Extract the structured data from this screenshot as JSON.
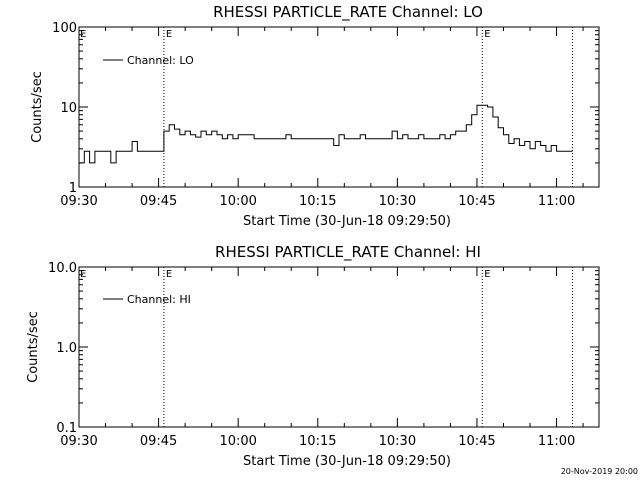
{
  "chart_data": [
    {
      "type": "line",
      "title": "RHESSI PARTICLE_RATE Channel: LO",
      "xlabel": "Start Time (30-Jun-18 09:29:50)",
      "ylabel": "Counts/sec",
      "yscale": "log",
      "ylim": [
        1,
        100
      ],
      "xlim": [
        "09:30",
        "11:08"
      ],
      "x_tick_labels": [
        "09:30",
        "09:45",
        "10:00",
        "10:15",
        "10:30",
        "10:45",
        "11:00"
      ],
      "y_tick_labels": [
        "1",
        "10",
        "100"
      ],
      "legend_entry": "Channel: LO",
      "legend_position": "top-left",
      "markers": [
        {
          "time": "09:46",
          "label": "E"
        },
        {
          "time": "10:46",
          "label": "E"
        },
        {
          "time": "11:03",
          "label": ""
        }
      ],
      "series": [
        {
          "name": "Channel: LO",
          "x": [
            "09:30",
            "09:31",
            "09:32",
            "09:33",
            "09:34",
            "09:35",
            "09:36",
            "09:37",
            "09:38",
            "09:39",
            "09:40",
            "09:41",
            "09:42",
            "09:43",
            "09:44",
            "09:45",
            "09:46",
            "09:47",
            "09:48",
            "09:49",
            "09:50",
            "09:51",
            "09:52",
            "09:53",
            "09:54",
            "09:55",
            "09:56",
            "09:57",
            "09:58",
            "09:59",
            "10:00",
            "10:01",
            "10:02",
            "10:03",
            "10:04",
            "10:05",
            "10:06",
            "10:07",
            "10:08",
            "10:09",
            "10:10",
            "10:11",
            "10:12",
            "10:13",
            "10:14",
            "10:15",
            "10:16",
            "10:17",
            "10:18",
            "10:19",
            "10:20",
            "10:21",
            "10:22",
            "10:23",
            "10:24",
            "10:25",
            "10:26",
            "10:27",
            "10:28",
            "10:29",
            "10:30",
            "10:31",
            "10:32",
            "10:33",
            "10:34",
            "10:35",
            "10:36",
            "10:37",
            "10:38",
            "10:39",
            "10:40",
            "10:41",
            "10:42",
            "10:43",
            "10:44",
            "10:45",
            "10:46",
            "10:47",
            "10:48",
            "10:49",
            "10:50",
            "10:51",
            "10:52",
            "10:53",
            "10:54",
            "10:55",
            "10:56",
            "10:57",
            "10:58",
            "10:59",
            "11:00",
            "11:01",
            "11:02"
          ],
          "values": [
            2,
            2.8,
            2,
            2.8,
            2.8,
            2.8,
            2,
            2.8,
            2.8,
            2.8,
            3.7,
            2.8,
            2.8,
            2.8,
            2.8,
            2.8,
            5,
            6,
            5.3,
            4.5,
            5,
            4.5,
            4.2,
            5,
            4.5,
            5,
            4.5,
            4,
            4.5,
            4,
            4.5,
            4.5,
            4.5,
            4,
            4,
            4,
            4,
            4,
            4,
            4.5,
            4,
            4,
            4,
            4,
            4,
            4,
            4,
            4,
            3.3,
            4.5,
            4,
            4,
            4,
            4.5,
            4,
            4,
            4,
            4,
            4,
            5,
            4,
            4.5,
            4,
            4,
            4.5,
            4,
            4,
            4,
            4.5,
            4,
            4.5,
            5,
            5,
            6,
            8,
            10.5,
            10.5,
            10,
            7.5,
            5.5,
            4.5,
            3.5,
            4,
            3.3,
            3.7,
            3,
            3.7,
            3.3,
            2.8,
            3.3,
            2.8,
            2.8,
            2.8
          ]
        }
      ]
    },
    {
      "type": "line",
      "title": "RHESSI PARTICLE_RATE Channel: HI",
      "xlabel": "Start Time (30-Jun-18 09:29:50)",
      "ylabel": "Counts/sec",
      "yscale": "log",
      "ylim": [
        0.1,
        10
      ],
      "xlim": [
        "09:30",
        "11:08"
      ],
      "x_tick_labels": [
        "09:30",
        "09:45",
        "10:00",
        "10:15",
        "10:30",
        "10:45",
        "11:00"
      ],
      "y_tick_labels": [
        "0.1",
        "1.0",
        "10.0"
      ],
      "legend_entry": "Channel: HI",
      "legend_position": "top-left",
      "markers": [
        {
          "time": "09:46",
          "label": "E"
        },
        {
          "time": "10:46",
          "label": "E"
        },
        {
          "time": "11:03",
          "label": ""
        }
      ],
      "series": [
        {
          "name": "Channel: HI",
          "x": [],
          "values": []
        }
      ]
    }
  ],
  "footer": {
    "date_stamp": "20-Nov-2019 20:00"
  }
}
